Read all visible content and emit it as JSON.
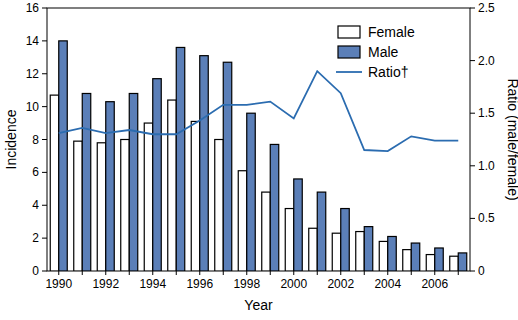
{
  "chart_data": {
    "type": "bar",
    "x_label": "Year",
    "y_label": "Incidence",
    "y2_label": "Ratio (male/female)",
    "categories": [
      1990,
      null,
      1992,
      null,
      1994,
      null,
      1996,
      null,
      1998,
      null,
      2000,
      null,
      2002,
      null,
      2004,
      null,
      2006,
      null
    ],
    "series": [
      {
        "name": "Female",
        "type": "bar",
        "color": "#ffffff",
        "values": [
          10.7,
          7.9,
          7.8,
          8.0,
          9.0,
          10.4,
          9.1,
          8.0,
          6.1,
          4.8,
          3.8,
          2.6,
          2.3,
          2.4,
          1.8,
          1.3,
          1.0,
          0.9
        ]
      },
      {
        "name": "Male",
        "type": "bar",
        "color": "#5b7fb8",
        "values": [
          14.0,
          10.8,
          10.3,
          10.8,
          11.7,
          13.6,
          13.1,
          12.7,
          9.6,
          7.7,
          5.6,
          4.8,
          3.8,
          2.7,
          2.1,
          1.7,
          1.4,
          1.1
        ]
      },
      {
        "name": "Ratio†",
        "type": "line",
        "axis": "y2",
        "color": "#2b6cb0",
        "values": [
          1.31,
          1.36,
          1.31,
          1.34,
          1.3,
          1.3,
          1.43,
          1.58,
          1.58,
          1.61,
          1.45,
          1.9,
          1.69,
          1.15,
          1.14,
          1.28,
          1.24,
          1.24
        ]
      }
    ],
    "ylim": [
      0,
      16
    ],
    "yticks": [
      0,
      2,
      4,
      6,
      8,
      10,
      12,
      14,
      16
    ],
    "y2lim": [
      0,
      2.5
    ],
    "y2ticks": [
      0,
      0.5,
      {
        "value": 1,
        "label": "1.0"
      },
      1.5,
      {
        "value": 2,
        "label": "2.0"
      },
      2.5
    ],
    "legend": "upper right"
  }
}
